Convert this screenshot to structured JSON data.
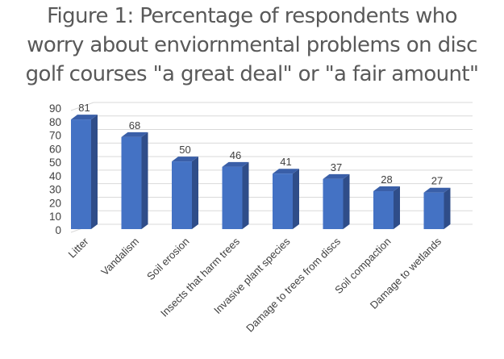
{
  "title": {
    "line1": "Figure 1: Percentage of respondents who",
    "line2": "worry about enviornmental problems on disc",
    "line3": "golf courses \"a great deal\" or \"a fair amount\""
  },
  "colors": {
    "bar_front": "#4472C4",
    "bar_side": "#2F4D89",
    "bar_top": "#3A5FA8",
    "gridline": "#D9D9D9",
    "text": "#404040",
    "title": "#595959"
  },
  "chart_data": {
    "type": "bar",
    "style": "3d-clustered-column",
    "title": "Figure 1: Percentage of respondents who worry about enviornmental problems on disc golf courses \"a great deal\" or \"a fair amount\"",
    "categories": [
      "Litter",
      "Vandalism",
      "Soil erosion",
      "Insects that harm trees",
      "Invasive plant species",
      "Damage to trees from discs",
      "Soil compaction",
      "Damage to wetlands"
    ],
    "values": [
      81,
      68,
      50,
      46,
      41,
      37,
      28,
      27
    ],
    "data_labels": [
      "81",
      "68",
      "50",
      "46",
      "41",
      "37",
      "28",
      "27"
    ],
    "xlabel": "",
    "ylabel": "",
    "ylim": [
      0,
      90
    ],
    "yticks": [
      0,
      10,
      20,
      30,
      40,
      50,
      60,
      70,
      80,
      90
    ],
    "grid": true,
    "legend": "none",
    "x_tick_rotation": -45
  }
}
